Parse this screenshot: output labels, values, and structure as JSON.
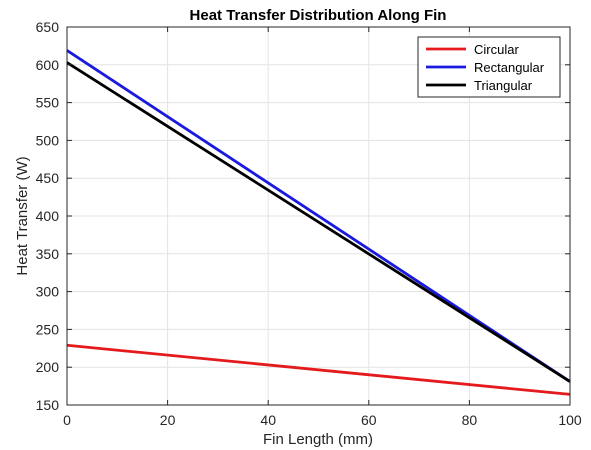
{
  "chart_data": {
    "type": "line",
    "title": "Heat Transfer Distribution Along Fin",
    "xlabel": "Fin Length (mm)",
    "ylabel": "Heat Transfer (W)",
    "xlim": [
      0,
      100
    ],
    "ylim": [
      150,
      650
    ],
    "xticks": [
      0,
      20,
      40,
      60,
      80,
      100
    ],
    "yticks": [
      150,
      200,
      250,
      300,
      350,
      400,
      450,
      500,
      550,
      600,
      650
    ],
    "grid": true,
    "legend_position": "top-right",
    "series": [
      {
        "name": "Circular",
        "color": "#e41a1c",
        "x": [
          0,
          100
        ],
        "y": [
          229,
          164
        ]
      },
      {
        "name": "Rectangular",
        "color": "#1a1adf",
        "x": [
          0,
          100
        ],
        "y": [
          619,
          181
        ]
      },
      {
        "name": "Triangular",
        "color": "#000000",
        "x": [
          0,
          100
        ],
        "y": [
          603,
          181
        ]
      }
    ]
  }
}
